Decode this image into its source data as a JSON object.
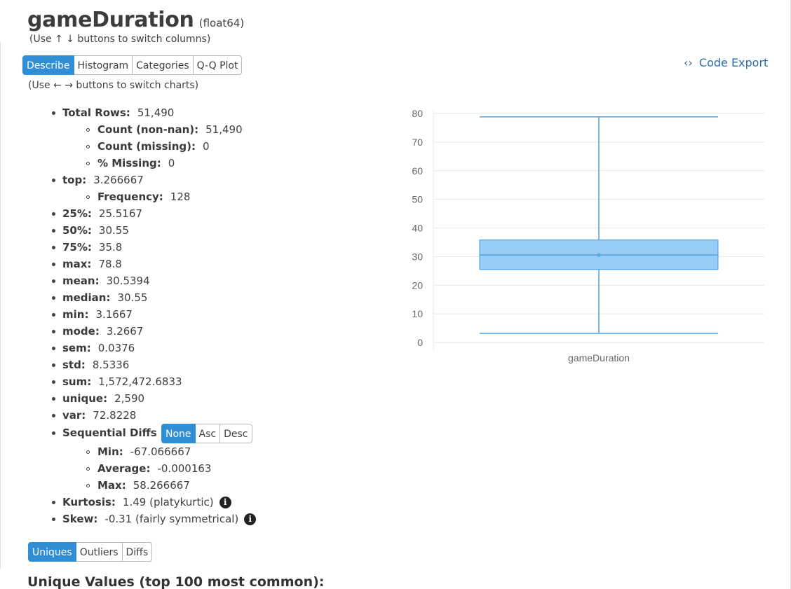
{
  "header": {
    "column_name": "gameDuration",
    "dtype": "(float64)",
    "column_hint": "(Use ↑ ↓ buttons to switch columns)",
    "chart_hint": "(Use ← → buttons to switch charts)"
  },
  "tabs": [
    {
      "label": "Describe",
      "active": true
    },
    {
      "label": "Histogram",
      "active": false
    },
    {
      "label": "Categories",
      "active": false
    },
    {
      "label": "Q-Q Plot",
      "active": false
    }
  ],
  "code_export": {
    "icon": "code-icon",
    "glyph": "‹›",
    "label": "Code Export"
  },
  "stats": {
    "total_rows": {
      "label": "Total Rows:",
      "value": "51,490"
    },
    "count_non_nan": {
      "label": "Count (non-nan):",
      "value": "51,490"
    },
    "count_missing": {
      "label": "Count (missing):",
      "value": "0"
    },
    "pct_missing": {
      "label": "% Missing:",
      "value": "0"
    },
    "top": {
      "label": "top:",
      "value": "3.266667"
    },
    "frequency": {
      "label": "Frequency:",
      "value": "128"
    },
    "p25": {
      "label": "25%:",
      "value": "25.5167"
    },
    "p50": {
      "label": "50%:",
      "value": "30.55"
    },
    "p75": {
      "label": "75%:",
      "value": "35.8"
    },
    "max": {
      "label": "max:",
      "value": "78.8"
    },
    "mean": {
      "label": "mean:",
      "value": "30.5394"
    },
    "median": {
      "label": "median:",
      "value": "30.55"
    },
    "min": {
      "label": "min:",
      "value": "3.1667"
    },
    "mode": {
      "label": "mode:",
      "value": "3.2667"
    },
    "sem": {
      "label": "sem:",
      "value": "0.0376"
    },
    "std": {
      "label": "std:",
      "value": "8.5336"
    },
    "sum": {
      "label": "sum:",
      "value": "1,572,472.6833"
    },
    "unique": {
      "label": "unique:",
      "value": "2,590"
    },
    "var": {
      "label": "var:",
      "value": "72.8228"
    },
    "sequential_diffs": {
      "label": "Sequential Diffs",
      "options": [
        {
          "label": "None",
          "active": true
        },
        {
          "label": "Asc",
          "active": false
        },
        {
          "label": "Desc",
          "active": false
        }
      ],
      "min": {
        "label": "Min:",
        "value": "-67.066667"
      },
      "average": {
        "label": "Average:",
        "value": "-0.000163"
      },
      "max": {
        "label": "Max:",
        "value": "58.266667"
      }
    },
    "kurtosis": {
      "label": "Kurtosis:",
      "value": "1.49 (platykurtic)",
      "icon": "info-icon",
      "glyph": "i"
    },
    "skew": {
      "label": "Skew:",
      "value": "-0.31 (fairly symmetrical)",
      "icon": "info-icon",
      "glyph": "i"
    }
  },
  "bottom_tabs": [
    {
      "label": "Uniques",
      "active": true
    },
    {
      "label": "Outliers",
      "active": false
    },
    {
      "label": "Diffs",
      "active": false
    }
  ],
  "unique_heading": "Unique Values (top 100 most common):",
  "chart_data": {
    "type": "box",
    "categories": [
      "gameDuration"
    ],
    "series": [
      {
        "min": 3.1667,
        "q1": 25.5167,
        "median": 30.55,
        "q3": 35.8,
        "max": 78.8,
        "mean": 30.5394
      }
    ],
    "ylim": [
      0,
      80
    ],
    "yticks": [
      0,
      10,
      20,
      30,
      40,
      50,
      60,
      70,
      80
    ],
    "grid": true,
    "colors": {
      "box_fill": "#99cdf5",
      "box_stroke": "#4da3e6",
      "grid": "#e6e6e6",
      "axis_text": "#666666"
    }
  }
}
